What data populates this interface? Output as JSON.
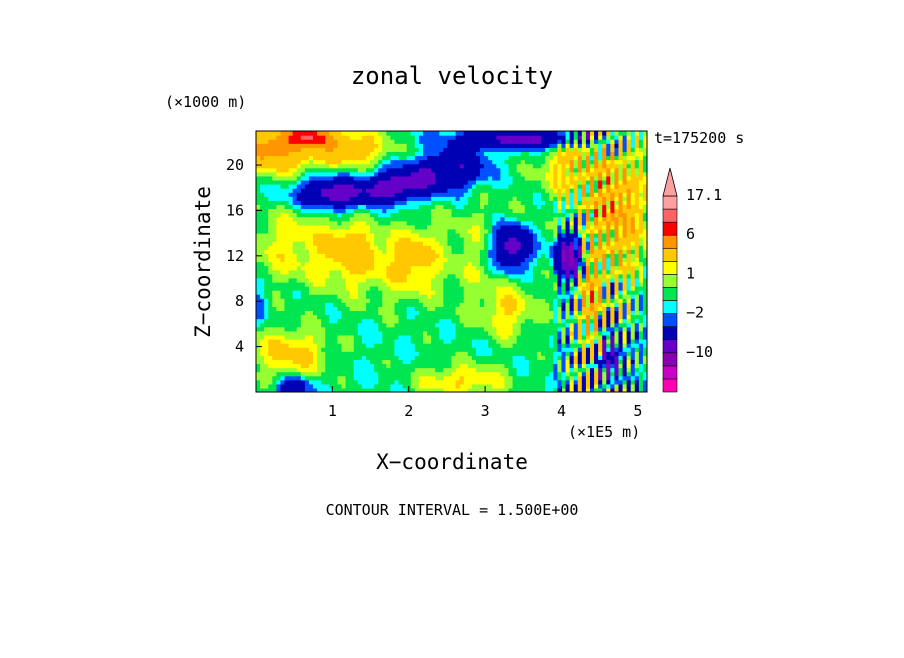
{
  "chart_data": {
    "type": "heatmap",
    "title": "zonal velocity",
    "time_label": "t=175200 s",
    "xlabel": "X−coordinate",
    "ylabel": "Z−coordinate",
    "x_unit": "(×1E5 m)",
    "y_unit": "(×1000 m)",
    "contour_interval_text": "CONTOUR INTERVAL = 1.500E+00",
    "xlim": [
      0,
      5.12
    ],
    "ylim": [
      0,
      23
    ],
    "xticks": [
      1,
      2,
      3,
      4,
      5
    ],
    "xtick_labels": [
      "1",
      "2",
      "3",
      "4",
      "5"
    ],
    "yticks": [
      4,
      8,
      12,
      16,
      20
    ],
    "ytick_labels": [
      "4",
      "8",
      "12",
      "16",
      "20"
    ],
    "colorbar": {
      "levels": [
        {
          "color": "#ff00b4",
          "label": ""
        },
        {
          "color": "#c800c8",
          "label": ""
        },
        {
          "color": "#8c00b4",
          "label": "−10"
        },
        {
          "color": "#6400c8",
          "label": ""
        },
        {
          "color": "#0000b4",
          "label": ""
        },
        {
          "color": "#0050ff",
          "label": "−2"
        },
        {
          "color": "#00ffff",
          "label": ""
        },
        {
          "color": "#00e650",
          "label": ""
        },
        {
          "color": "#96ff32",
          "label": "1"
        },
        {
          "color": "#ffff00",
          "label": ""
        },
        {
          "color": "#ffc800",
          "label": ""
        },
        {
          "color": "#ff9600",
          "label": "6"
        },
        {
          "color": "#ff0000",
          "label": ""
        },
        {
          "color": "#ff6464",
          "label": ""
        },
        {
          "color": "#ffa0a0",
          "label": "17.1"
        }
      ],
      "extend": "max"
    },
    "field_regions": [
      {
        "x": 2.55,
        "z": 11.5,
        "value": 0.2,
        "sx": 2.6,
        "sz": 12
      },
      {
        "x": 3.0,
        "z": 12.5,
        "value": 1.5,
        "sx": 0.8,
        "sz": 5
      },
      {
        "x": 1.6,
        "z": 9.5,
        "value": 1.2,
        "sx": 0.7,
        "sz": 2.5
      },
      {
        "x": 0.5,
        "z": 13.0,
        "value": 2.5,
        "sx": 0.7,
        "sz": 3.5
      },
      {
        "x": 0.45,
        "z": 3.5,
        "value": 3.5,
        "sx": 0.5,
        "sz": 2.2
      },
      {
        "x": 1.3,
        "z": 12.5,
        "value": 4.0,
        "sx": 0.35,
        "sz": 2.2
      },
      {
        "x": 2.05,
        "z": 12.0,
        "value": 3.2,
        "sx": 0.3,
        "sz": 2.5
      },
      {
        "x": 3.3,
        "z": 7.0,
        "value": 2.5,
        "sx": 0.35,
        "sz": 2.2
      },
      {
        "x": 2.7,
        "z": 1.0,
        "value": 3.0,
        "sx": 0.6,
        "sz": 1.5
      },
      {
        "x": 0.2,
        "z": 21.5,
        "value": 7.0,
        "sx": 0.5,
        "sz": 2.0
      },
      {
        "x": 1.2,
        "z": 21.5,
        "value": 5.0,
        "sx": 0.5,
        "sz": 1.5
      },
      {
        "x": 0.7,
        "z": 22.5,
        "value": 9.0,
        "sx": 0.3,
        "sz": 0.8
      },
      {
        "x": 1.0,
        "z": 17.5,
        "value": -7.0,
        "sx": 0.45,
        "sz": 1.3
      },
      {
        "x": 1.75,
        "z": 18.0,
        "value": -6.0,
        "sx": 0.35,
        "sz": 1.2
      },
      {
        "x": 2.2,
        "z": 19.0,
        "value": -5.0,
        "sx": 0.4,
        "sz": 1.5
      },
      {
        "x": 3.35,
        "z": 12.8,
        "value": -8.0,
        "sx": 0.25,
        "sz": 2.0
      },
      {
        "x": 2.7,
        "z": 20.0,
        "value": -4.0,
        "sx": 0.35,
        "sz": 2.0
      },
      {
        "x": 3.6,
        "z": 22.3,
        "value": -6.0,
        "sx": 0.9,
        "sz": 0.8
      },
      {
        "x": 4.1,
        "z": 12.0,
        "value": -9.0,
        "sx": 0.18,
        "sz": 2.0
      },
      {
        "x": 4.7,
        "z": 16.0,
        "value": 6.0,
        "sx": 0.4,
        "sz": 6.0
      },
      {
        "x": 4.4,
        "z": 8.0,
        "value": 5.0,
        "sx": 0.15,
        "sz": 4.0
      },
      {
        "x": 4.65,
        "z": 3.0,
        "value": -6.0,
        "sx": 0.15,
        "sz": 2.0
      },
      {
        "x": 0.5,
        "z": 0.5,
        "value": -5.0,
        "sx": 0.2,
        "sz": 0.8
      },
      {
        "x": 4.1,
        "z": 20.0,
        "value": 4.0,
        "sx": 0.35,
        "sz": 2.5
      },
      {
        "x": 0.05,
        "z": 8.0,
        "value": -1.5,
        "sx": 0.12,
        "sz": 1.5
      }
    ]
  }
}
